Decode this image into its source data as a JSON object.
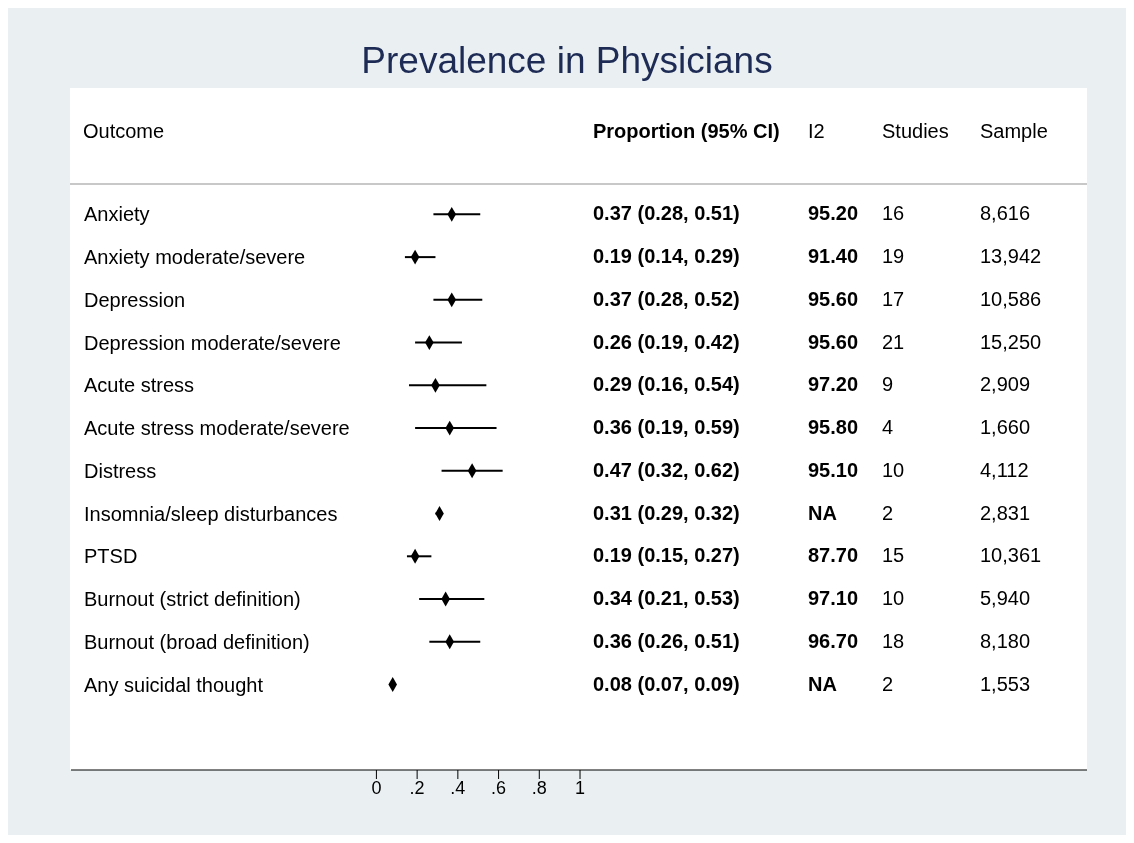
{
  "chart_data": {
    "type": "scatter",
    "orientation": "horizontal",
    "title": "Prevalence in Physicians",
    "categories": [
      "Anxiety",
      "Anxiety moderate/severe",
      "Depression",
      "Depression moderate/severe",
      "Acute stress",
      "Acute stress moderate/severe",
      "Distress",
      "Insomnia/sleep disturbances",
      "PTSD",
      "Burnout (strict definition)",
      "Burnout (broad definition)",
      "Any suicidal thought"
    ],
    "values": [
      0.37,
      0.19,
      0.37,
      0.26,
      0.29,
      0.36,
      0.47,
      0.31,
      0.19,
      0.34,
      0.36,
      0.08
    ],
    "errors": [
      [
        0.28,
        0.51
      ],
      [
        0.14,
        0.29
      ],
      [
        0.28,
        0.52
      ],
      [
        0.19,
        0.42
      ],
      [
        0.16,
        0.54
      ],
      [
        0.19,
        0.59
      ],
      [
        0.32,
        0.62
      ],
      [
        0.29,
        0.32
      ],
      [
        0.15,
        0.27
      ],
      [
        0.21,
        0.53
      ],
      [
        0.26,
        0.51
      ],
      [
        0.07,
        0.09
      ]
    ],
    "color": "#000000",
    "marker": "diamond",
    "xlim": [
      -1.5,
      3.49
    ],
    "xticks": [
      0,
      {
        "value": 0.2,
        "label": ".2"
      },
      {
        "value": 0.4,
        "label": ".4"
      },
      {
        "value": 0.6,
        "label": ".6"
      },
      {
        "value": 0.8,
        "label": ".8"
      },
      1
    ],
    "annotations": [
      "Outcome",
      "Proportion (95% CI)",
      "I2",
      "Studies",
      "Sample",
      "0.37 (0.28, 0.51)",
      "95.20",
      "16",
      "8,616",
      "0.19 (0.14, 0.29)",
      "91.40",
      "19",
      "13,942",
      "0.37 (0.28, 0.52)",
      "95.60",
      "17",
      "10,586",
      "0.26 (0.19, 0.42)",
      "95.60",
      "21",
      "15,250",
      "0.29 (0.16, 0.54)",
      "97.20",
      "9",
      "2,909",
      "0.36 (0.19, 0.59)",
      "95.80",
      "4",
      "1,660",
      "0.47 (0.32, 0.62)",
      "95.10",
      "10",
      "4,112",
      "0.31 (0.29, 0.32)",
      "NA",
      "2",
      "2,831",
      "0.19 (0.15, 0.27)",
      "87.70",
      "15",
      "10,361",
      "0.34 (0.21, 0.53)",
      "97.10",
      "10",
      "5,940",
      "0.36 (0.26, 0.51)",
      "96.70",
      "18",
      "8,180",
      "0.08 (0.07, 0.09)",
      "NA",
      "2",
      "1,553"
    ]
  }
}
